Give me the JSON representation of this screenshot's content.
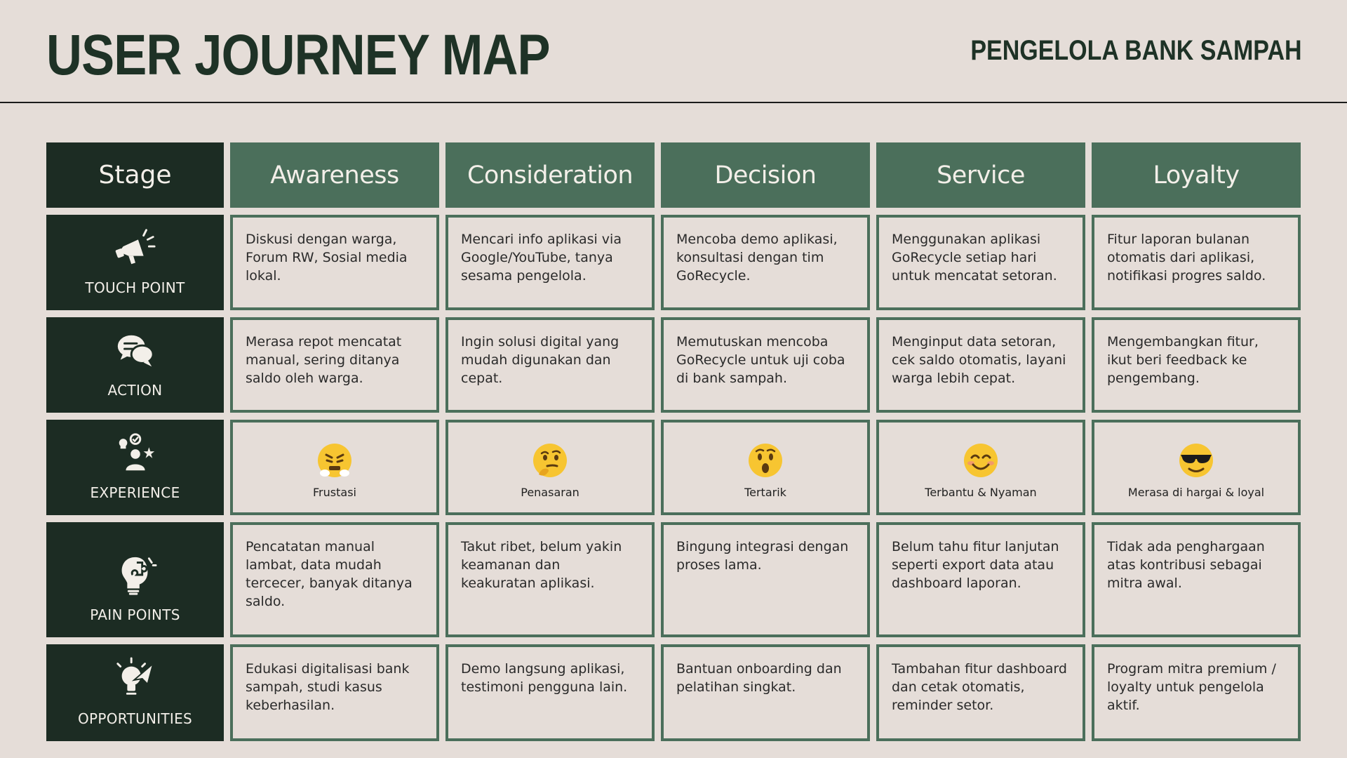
{
  "header": {
    "title": "USER JOURNEY MAP",
    "subtitle": "PENGELOLA BANK SAMPAH"
  },
  "table": {
    "corner": "Stage",
    "stages": [
      "Awareness",
      "Consideration",
      "Decision",
      "Service",
      "Loyalty"
    ],
    "rows": [
      {
        "label": "TOUCH POINT",
        "icon": "megaphone-icon",
        "cells": [
          "Diskusi dengan warga, Forum RW, Sosial media lokal.",
          "Mencari info aplikasi via Google/YouTube, tanya sesama pengelola.",
          "Mencoba demo aplikasi, konsultasi dengan tim GoRecycle.",
          "Menggunakan aplikasi GoRecycle setiap hari untuk mencatat setoran.",
          "Fitur laporan bulanan otomatis dari aplikasi, notifikasi progres saldo."
        ]
      },
      {
        "label": "ACTION",
        "icon": "chat-bubbles-icon",
        "cells": [
          "Merasa repot mencatat manual, sering ditanya saldo oleh warga.",
          "Ingin solusi digital yang mudah digunakan dan cepat.",
          "Memutuskan mencoba GoRecycle untuk uji coba di bank sampah.",
          "Menginput data setoran, cek saldo otomatis, layani warga lebih cepat.",
          "Mengembangkan fitur, ikut beri feedback ke pengembang."
        ]
      },
      {
        "label": "EXPERIENCE",
        "icon": "person-ideas-icon",
        "emotions": [
          {
            "label": "Frustasi",
            "icon": "steaming-face-icon"
          },
          {
            "label": "Penasaran",
            "icon": "thinking-face-icon"
          },
          {
            "label": "Tertarik",
            "icon": "surprised-face-icon"
          },
          {
            "label": "Terbantu & Nyaman",
            "icon": "smiling-face-icon"
          },
          {
            "label": "Merasa di  hargai & loyal",
            "icon": "sunglasses-face-icon"
          }
        ]
      },
      {
        "label": "PAIN POINTS",
        "icon": "puzzle-head-icon",
        "cells": [
          "Pencatatan manual lambat, data mudah tercecer, banyak ditanya saldo.",
          "Takut ribet, belum yakin keamanan dan keakuratan aplikasi.",
          "Bingung integrasi dengan proses lama.",
          "Belum tahu fitur lanjutan seperti export data atau dashboard laporan.",
          "Tidak ada penghargaan atas kontribusi sebagai mitra awal."
        ]
      },
      {
        "label": "OPPORTUNITIES",
        "icon": "lightbulb-plane-icon",
        "cells": [
          "Edukasi digitalisasi bank sampah, studi kasus keberhasilan.",
          "Demo langsung aplikasi, testimoni pengguna lain.",
          "Bantuan onboarding dan pelatihan singkat.",
          "Tambahan fitur dashboard dan cetak otomatis, reminder setor.",
          "Program mitra premium / loyalty untuk pengelola aktif."
        ]
      }
    ]
  },
  "colors": {
    "background": "#e5ddd8",
    "dark_green": "#1c2c23",
    "mid_green": "#4b6f5b",
    "emoji_yellow": "#f7c531"
  }
}
